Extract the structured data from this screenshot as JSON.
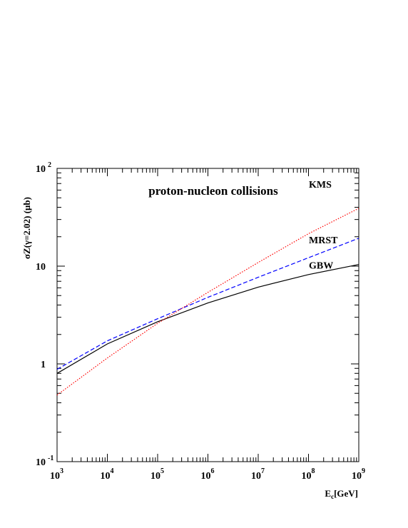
{
  "chart_data": {
    "type": "line",
    "title": "proton-nucleon collisions",
    "xlabel": "[GeV]",
    "xlabel_symbol": "E",
    "xlabel_subscript": "c",
    "ylabel": "σZ(γ=2.02) (μb)",
    "x_scale": "log",
    "y_scale": "log",
    "xlim": [
      1000,
      1000000000
    ],
    "ylim": [
      0.1,
      100
    ],
    "grid": false,
    "x_ticks": [
      {
        "base": "10",
        "exp": "3"
      },
      {
        "base": "10",
        "exp": "4"
      },
      {
        "base": "10",
        "exp": "5"
      },
      {
        "base": "10",
        "exp": "6"
      },
      {
        "base": "10",
        "exp": "7"
      },
      {
        "base": "10",
        "exp": "8"
      },
      {
        "base": "10",
        "exp": "9"
      }
    ],
    "y_ticks": [
      {
        "base": "10",
        "exp": "-1"
      },
      {
        "base": "1",
        "exp": ""
      },
      {
        "base": "10",
        "exp": ""
      },
      {
        "base": "10",
        "exp": "2"
      }
    ],
    "series": [
      {
        "name": "GBW",
        "color": "#000000",
        "dash": "solid",
        "x": [
          1000,
          10000,
          100000,
          1000000,
          10000000,
          100000000,
          1000000000
        ],
        "values": [
          0.8,
          1.6,
          2.7,
          4.2,
          6.1,
          8.2,
          10.4
        ]
      },
      {
        "name": "MRST",
        "color": "#0000ff",
        "dash": "dashed",
        "x": [
          1000,
          10000,
          100000,
          1000000,
          10000000,
          100000000,
          1000000000
        ],
        "values": [
          0.88,
          1.72,
          2.9,
          4.8,
          7.7,
          12.2,
          19.3
        ]
      },
      {
        "name": "KMS",
        "color": "#ff0000",
        "dash": "dotted",
        "x": [
          1000,
          10000,
          100000,
          1000000,
          10000000,
          100000000,
          1000000000
        ],
        "values": [
          0.48,
          1.15,
          2.6,
          5.4,
          10.9,
          21.5,
          39.0
        ]
      }
    ]
  }
}
